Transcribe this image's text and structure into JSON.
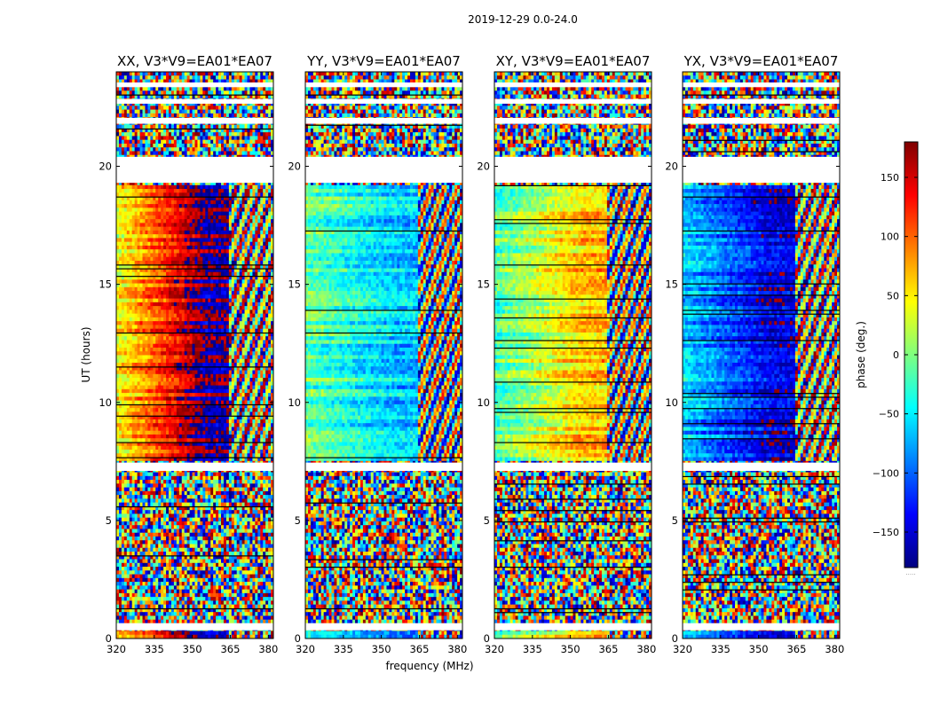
{
  "chart_data": {
    "type": "heatmap",
    "suptitle": "2019-12-29 0.0-24.0",
    "xlabel": "frequency (MHz)",
    "ylabel": "UT (hours)",
    "xlim": [
      320,
      382
    ],
    "ylim": [
      0,
      24
    ],
    "x_ticks": [
      320,
      335,
      350,
      365,
      380
    ],
    "y_ticks": [
      0,
      5,
      10,
      15,
      20
    ],
    "colorbar": {
      "label": "phase (deg.)",
      "range": [
        -180,
        180
      ],
      "ticks": [
        150,
        100,
        50,
        0,
        -50,
        -100,
        -150
      ],
      "tick_labels": [
        "150",
        "100",
        "50",
        "0",
        "−50",
        "−100",
        "−150"
      ],
      "colormap": "jet",
      "colors": [
        "#00007f",
        "#0000ff",
        "#007fff",
        "#00ffff",
        "#7fff7f",
        "#ffff00",
        "#ff7f00",
        "#ff0000",
        "#7f0000"
      ],
      "footnote": "....."
    },
    "blank_intervals_ut": [
      [
        0.35,
        0.65
      ],
      [
        7.1,
        7.45
      ],
      [
        19.3,
        20.4
      ],
      [
        21.8,
        22.05
      ],
      [
        22.65,
        22.85
      ],
      [
        23.35,
        23.55
      ]
    ],
    "panels": [
      {
        "title": "XX, V3*V9=EA01*EA07",
        "phase_at_320": 40,
        "phase_at_352": 175,
        "phase_right": -80
      },
      {
        "title": "YY, V3*V9=EA01*EA07",
        "phase_at_320": -10,
        "phase_at_352": -60,
        "phase_right": -20
      },
      {
        "title": "XY, V3*V9=EA01*EA07",
        "phase_at_320": -20,
        "phase_at_352": 60,
        "phase_right": -30
      },
      {
        "title": "YX, V3*V9=EA01*EA07",
        "phase_at_320": -60,
        "phase_at_352": -140,
        "phase_right": -80
      }
    ]
  }
}
